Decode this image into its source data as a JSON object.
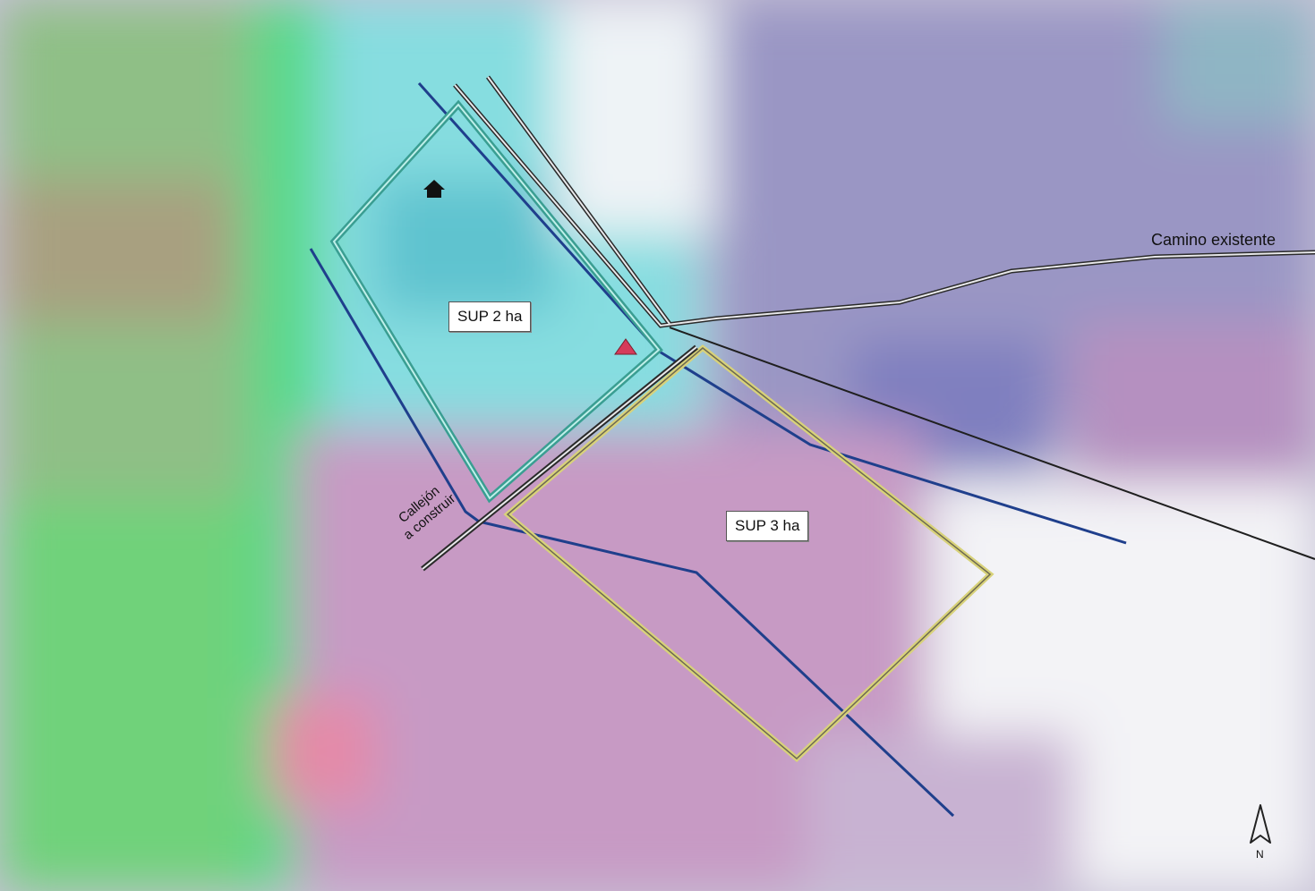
{
  "map": {
    "labels": {
      "parcel_2ha": "SUP 2 ha",
      "parcel_3ha": "SUP 3 ha",
      "existing_road": "Camino existente",
      "alley_line1": "Callejón",
      "alley_line2": "a construir",
      "north": "N"
    },
    "colors": {
      "parcel_2ha_outline": "#3a9e92",
      "parcel_3ha_outline": "#d8d27a",
      "stream": "#1f3f8c",
      "road": "#2a2a2a",
      "triangle_marker": "#d63b5a",
      "house_marker": "#111111"
    },
    "icons": {
      "house": "house-marker-icon",
      "triangle": "triangle-marker-icon",
      "north_arrow": "north-arrow-icon"
    }
  }
}
